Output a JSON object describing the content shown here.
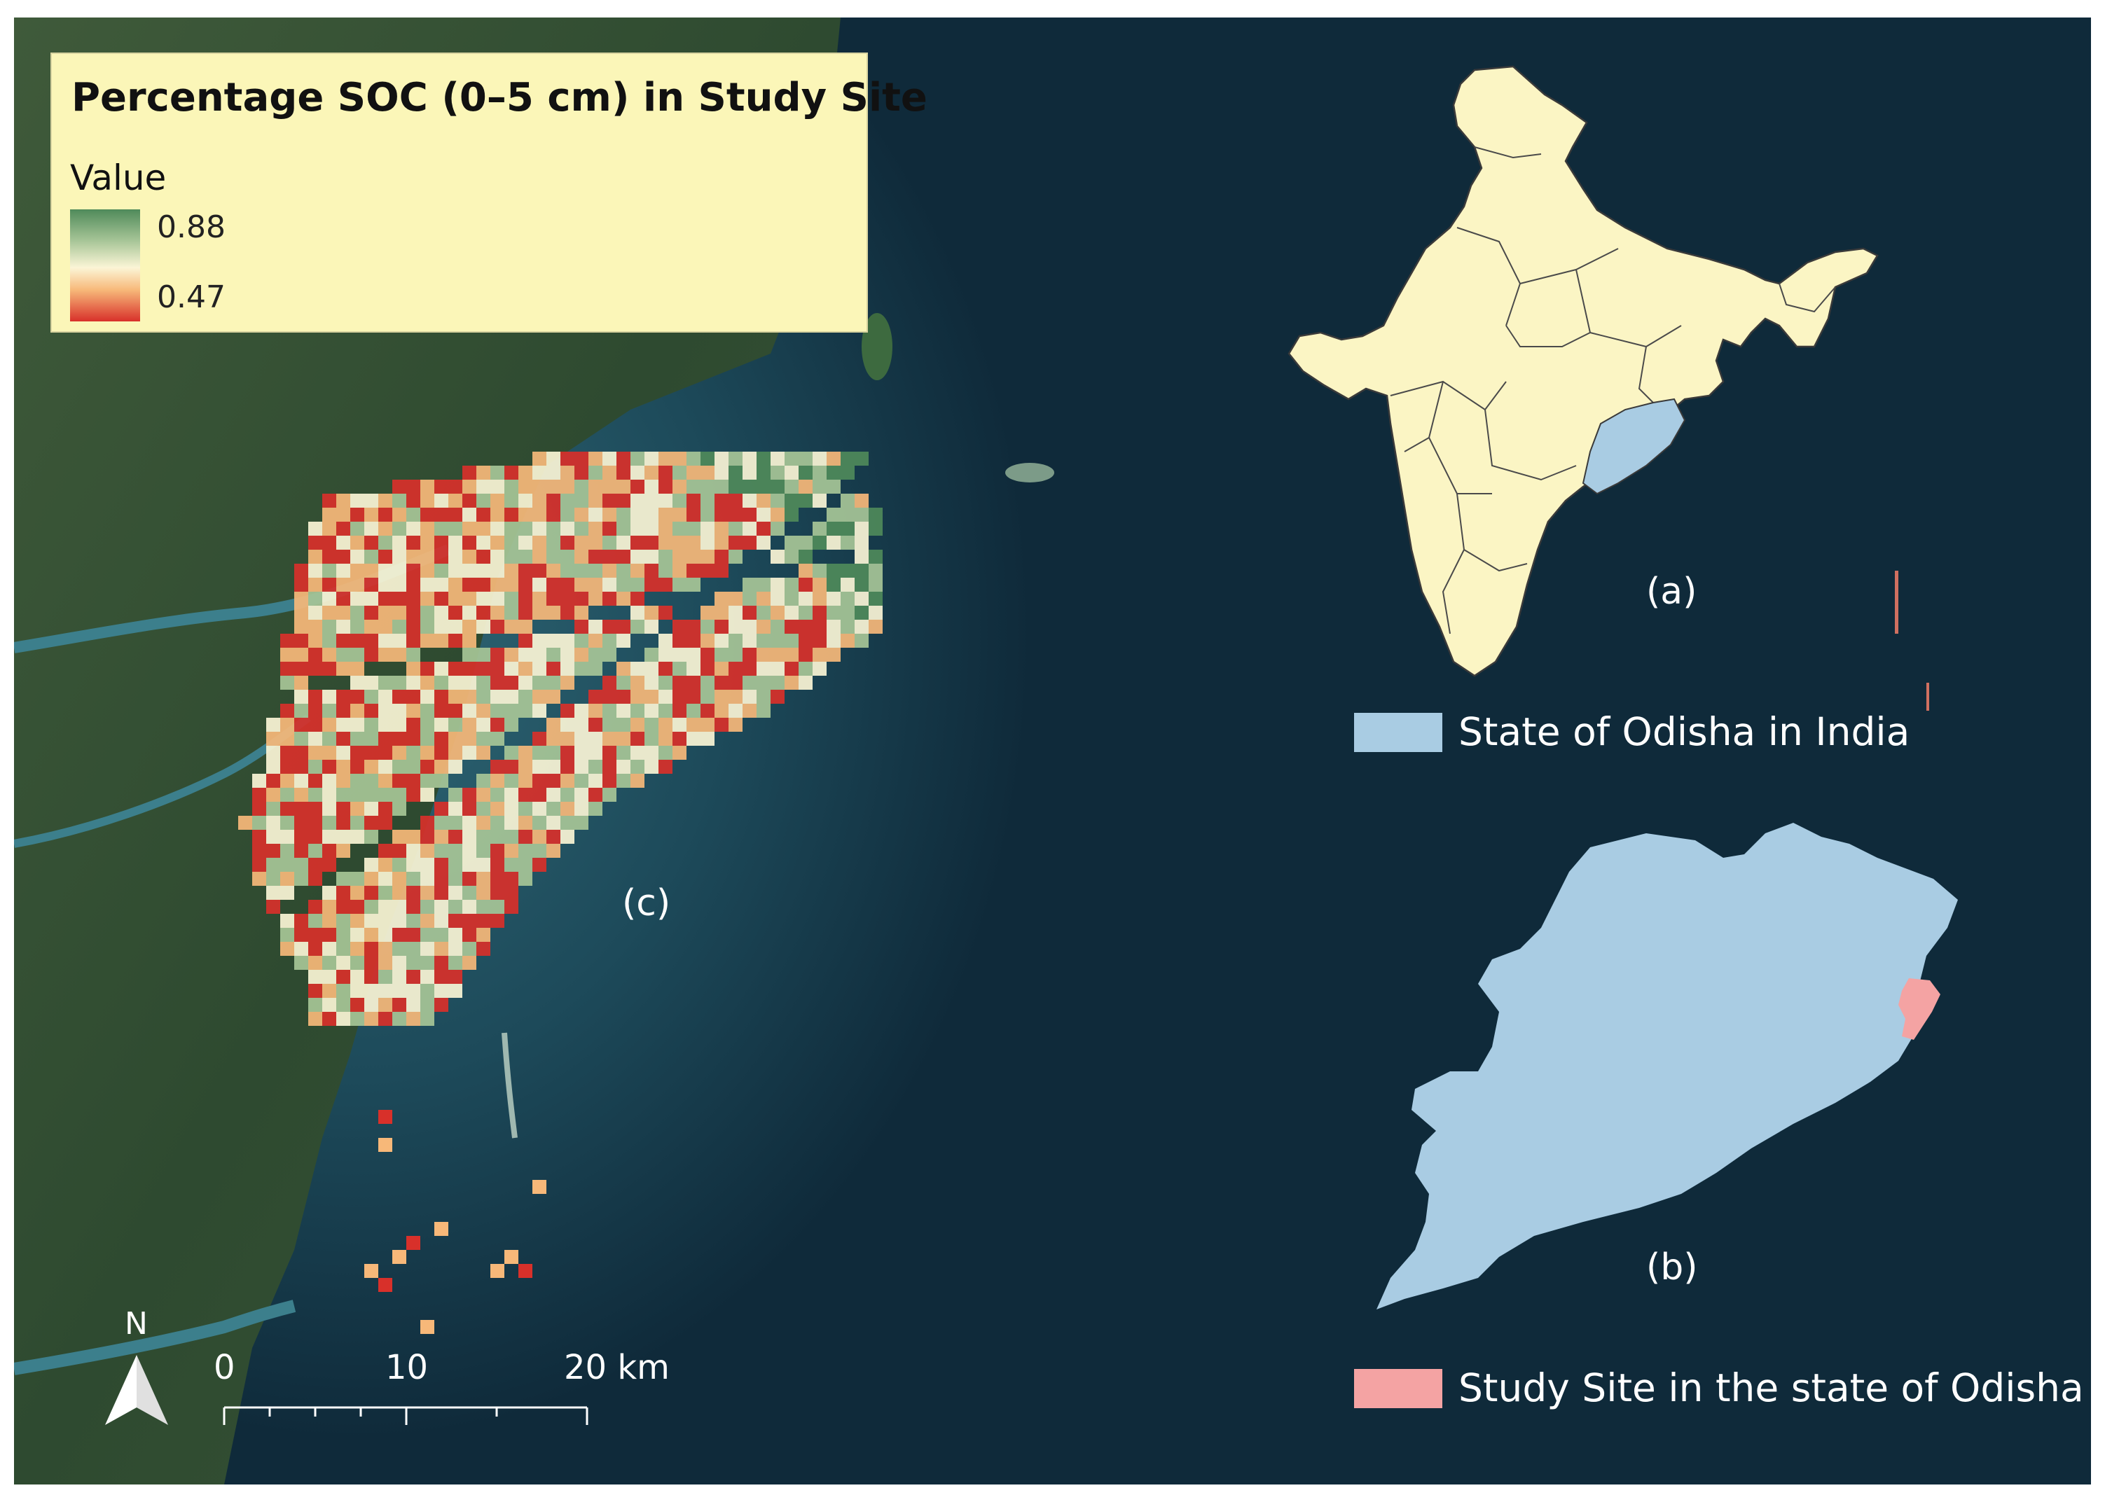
{
  "legend": {
    "title": "Percentage SOC (0–5 cm) in Study Site",
    "value_label": "Value",
    "max": "0.88",
    "min": "0.47",
    "ramp_colors": [
      "#4f8a5a",
      "#a7c597",
      "#fbf5d6",
      "#f7b879",
      "#d8302a"
    ]
  },
  "panels": {
    "a": "(a)",
    "b": "(b)",
    "c": "(c)"
  },
  "keys": {
    "odisha": {
      "label": "State of Odisha in India",
      "color": "#a9cce3"
    },
    "study_site": {
      "label": "Study Site in the state of Odisha",
      "color": "#f4a3a3"
    }
  },
  "scale_bar": {
    "ticks": [
      "0",
      "10",
      "20 km"
    ]
  },
  "north_arrow": {
    "label": "N"
  },
  "colors": {
    "sea": "#0f2a3a",
    "india_fill": "#fbf5c4",
    "odisha_fill": "#a9cce3",
    "study_site_fill": "#f4a3a3"
  }
}
